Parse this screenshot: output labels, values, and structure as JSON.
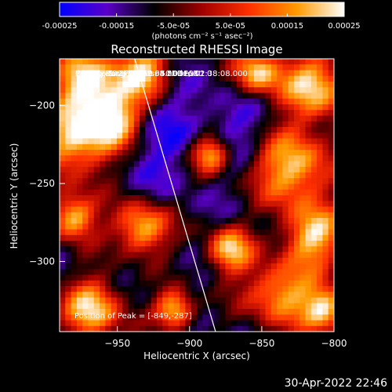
{
  "colorbar": {
    "ticks": [
      "-0.00025",
      "-0.00015",
      "-5.0e-05",
      "5.0e-05",
      "0.00015",
      "0.00025"
    ],
    "tick_values": [
      -0.00025,
      -0.00015,
      -5e-05,
      5e-05,
      0.00015,
      0.00025
    ],
    "range": [
      -0.00025,
      0.00025
    ],
    "units": "(photons cm⁻² s⁻¹ asec⁻²)",
    "stops": [
      "#0000ff",
      "#5a00c8",
      "#000000",
      "#a00000",
      "#ff3000",
      "#ff9a00",
      "#ffffff"
    ]
  },
  "chart_data": {
    "type": "heatmap",
    "title": "Reconstructed RHESSI Image",
    "xlabel": "Heliocentric X (arcsec)",
    "ylabel": "Heliocentric Y (arcsec)",
    "xlim": [
      -990,
      -800
    ],
    "ylim": [
      -345,
      -170
    ],
    "x_ticks": [
      -950,
      -900,
      -850,
      -800
    ],
    "y_ticks": [
      -200,
      -250,
      -300
    ],
    "limb_line": [
      [
        -938,
        -170
      ],
      [
        -882,
        -345
      ]
    ],
    "peak": [
      -849,
      -287
    ],
    "annotations": [
      "21-May-2004 02:32:08.000 to 02:38:08.000",
      "Detectors: 3F 4F 5F 6F 7F 8F, Att 0",
      "Energy Range: 25.0 - 50.0 keV",
      "Clean    Total counts: 4.50E+03"
    ],
    "peak_label": "Position of Peak = [-849,-287]"
  },
  "footer": {
    "timestamp": "30-Apr-2022 22:46"
  }
}
